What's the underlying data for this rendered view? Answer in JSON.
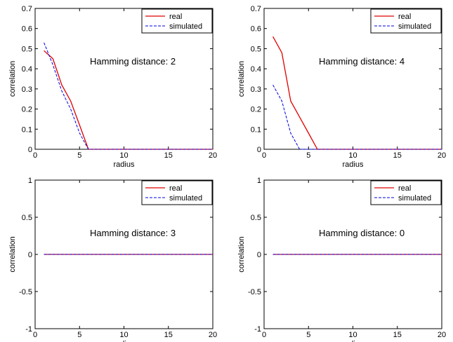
{
  "figure": {
    "colors": {
      "real": "#e00000",
      "simulated": "#0000e0",
      "axes": "#000000",
      "background": "#ffffff"
    }
  },
  "chart_data": [
    {
      "type": "line",
      "xlabel": "radius",
      "ylabel": "correlation",
      "annotation": "Hamming distance: 2",
      "xlim": [
        0,
        20
      ],
      "ylim": [
        0,
        0.7
      ],
      "xticks": [
        "0",
        "5",
        "10",
        "15",
        "20"
      ],
      "yticks": [
        "0",
        "0.1",
        "0.2",
        "0.3",
        "0.4",
        "0.5",
        "0.6",
        "0.7"
      ],
      "legend": {
        "position": "top-right",
        "entries": [
          "real",
          "simulated"
        ]
      },
      "series": [
        {
          "name": "real",
          "style": "solid",
          "x": [
            1,
            2,
            3,
            4,
            5,
            6,
            20
          ],
          "y": [
            0.49,
            0.45,
            0.32,
            0.24,
            0.12,
            0,
            0
          ]
        },
        {
          "name": "simulated",
          "style": "dashed",
          "x": [
            1,
            2,
            3,
            4,
            5,
            6,
            20
          ],
          "y": [
            0.53,
            0.42,
            0.29,
            0.2,
            0.08,
            0,
            0
          ]
        }
      ]
    },
    {
      "type": "line",
      "xlabel": "radius",
      "ylabel": "correlation",
      "annotation": "Hamming distance: 4",
      "xlim": [
        0,
        20
      ],
      "ylim": [
        0,
        0.7
      ],
      "xticks": [
        "0",
        "5",
        "10",
        "15",
        "20"
      ],
      "yticks": [
        "0",
        "0.1",
        "0.2",
        "0.3",
        "0.4",
        "0.5",
        "0.6",
        "0.7"
      ],
      "legend": {
        "position": "top-right",
        "entries": [
          "real",
          "simulated"
        ]
      },
      "series": [
        {
          "name": "real",
          "style": "solid",
          "x": [
            1,
            2,
            3,
            4,
            5,
            6,
            20
          ],
          "y": [
            0.56,
            0.48,
            0.24,
            0.16,
            0.08,
            0,
            0
          ]
        },
        {
          "name": "simulated",
          "style": "dashed",
          "x": [
            1,
            2,
            3,
            4,
            20
          ],
          "y": [
            0.32,
            0.24,
            0.08,
            0,
            0
          ]
        }
      ]
    },
    {
      "type": "line",
      "xlabel": "radius",
      "ylabel": "correlation",
      "annotation": "Hamming distance: 3",
      "xlim": [
        0,
        20
      ],
      "ylim": [
        -1,
        1
      ],
      "xticks": [
        "0",
        "5",
        "10",
        "15",
        "20"
      ],
      "yticks": [
        "-1",
        "-0.5",
        "0",
        "0.5",
        "1"
      ],
      "legend": {
        "position": "top-right",
        "entries": [
          "real",
          "simulated"
        ]
      },
      "series": [
        {
          "name": "real",
          "style": "solid",
          "x": [
            1,
            20
          ],
          "y": [
            0,
            0
          ]
        },
        {
          "name": "simulated",
          "style": "dashed",
          "x": [
            1,
            20
          ],
          "y": [
            0,
            0
          ]
        }
      ]
    },
    {
      "type": "line",
      "xlabel": "radius",
      "ylabel": "correlation",
      "annotation": "Hamming distance: 0",
      "xlim": [
        0,
        20
      ],
      "ylim": [
        -1,
        1
      ],
      "xticks": [
        "0",
        "5",
        "10",
        "15",
        "20"
      ],
      "yticks": [
        "-1",
        "-0.5",
        "0",
        "0.5",
        "1"
      ],
      "legend": {
        "position": "top-right",
        "entries": [
          "real",
          "simulated"
        ]
      },
      "series": [
        {
          "name": "real",
          "style": "solid",
          "x": [
            1,
            20
          ],
          "y": [
            0,
            0
          ]
        },
        {
          "name": "simulated",
          "style": "dashed",
          "x": [
            1,
            20
          ],
          "y": [
            0,
            0
          ]
        }
      ]
    }
  ]
}
